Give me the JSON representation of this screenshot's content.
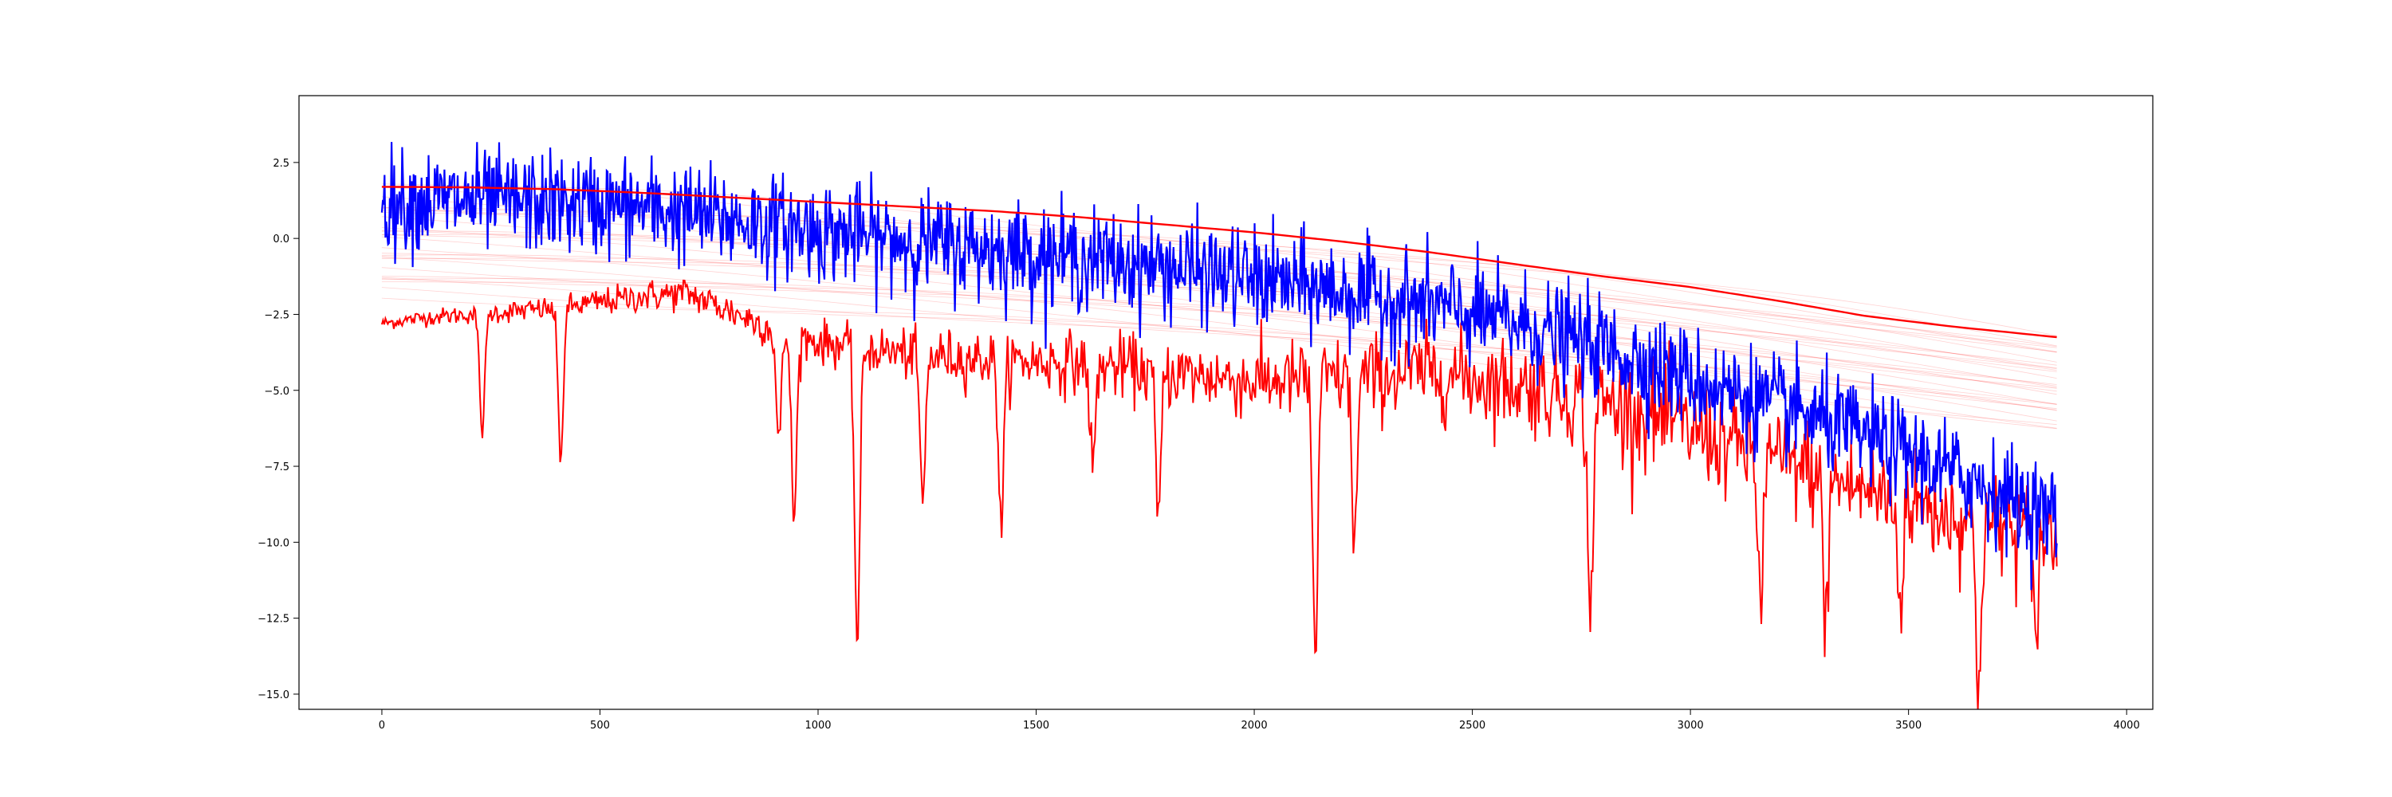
{
  "chart_data": {
    "type": "line",
    "title": "",
    "xlabel": "",
    "ylabel": "",
    "xlim": [
      -190,
      4060
    ],
    "ylim": [
      -15.5,
      4.7
    ],
    "xticks": [
      0,
      500,
      1000,
      1500,
      2000,
      2500,
      3000,
      3500,
      4000
    ],
    "yticks": [
      -15.0,
      -12.5,
      -10.0,
      -7.5,
      -5.0,
      -2.5,
      0.0,
      2.5
    ],
    "xtick_labels": [
      "0",
      "500",
      "1000",
      "1500",
      "2000",
      "2500",
      "3000",
      "3500",
      "4000"
    ],
    "ytick_labels": [
      "−15.0",
      "−12.5",
      "−10.0",
      "−7.5",
      "−5.0",
      "−2.5",
      "0.0",
      "2.5"
    ],
    "grid": false,
    "legend": "none",
    "x_range": [
      0,
      3840
    ],
    "series": [
      {
        "color": "#ff0000",
        "role": "upper smooth curve",
        "x": [
          0,
          200,
          400,
          600,
          800,
          1000,
          1200,
          1400,
          1600,
          1800,
          2000,
          2200,
          2400,
          2600,
          2800,
          3000,
          3200,
          3400,
          3600,
          3840
        ],
        "values": [
          1.7,
          1.68,
          1.62,
          1.5,
          1.35,
          1.2,
          1.05,
          0.9,
          0.7,
          0.45,
          0.2,
          -0.1,
          -0.45,
          -0.85,
          -1.25,
          -1.6,
          -2.05,
          -2.55,
          -2.9,
          -3.25
        ]
      },
      {
        "color": "#ff0000",
        "role": "lower noisy curve with dips",
        "x": [
          0,
          100,
          200,
          300,
          400,
          500,
          600,
          700,
          800,
          900,
          1000,
          1200,
          1400,
          1600,
          1800,
          2000,
          2200,
          2400,
          2600,
          2800,
          3000,
          3200,
          3400,
          3600,
          3840
        ],
        "values": [
          -2.8,
          -2.6,
          -2.5,
          -2.4,
          -2.3,
          -2.1,
          -1.9,
          -1.8,
          -2.4,
          -3.0,
          -3.4,
          -3.8,
          -4.0,
          -4.1,
          -4.4,
          -4.7,
          -4.6,
          -4.4,
          -4.8,
          -5.4,
          -6.3,
          -7.3,
          -8.3,
          -9.1,
          -9.9
        ],
        "dips": [
          [
            230,
            -6.3
          ],
          [
            410,
            -7.2
          ],
          [
            910,
            -6.7
          ],
          [
            945,
            -9.3
          ],
          [
            1090,
            -13.3
          ],
          [
            1240,
            -8.8
          ],
          [
            1420,
            -9.5
          ],
          [
            1630,
            -7.6
          ],
          [
            1780,
            -9.3
          ],
          [
            2140,
            -13.6
          ],
          [
            2230,
            -9.9
          ],
          [
            2770,
            -12.4
          ],
          [
            3160,
            -12.1
          ],
          [
            3310,
            -12.6
          ],
          [
            3480,
            -12.0
          ],
          [
            3660,
            -14.6
          ],
          [
            3790,
            -12.9
          ]
        ]
      },
      {
        "color": "#0000ff",
        "role": "noisy data series",
        "x": [
          0,
          200,
          400,
          600,
          800,
          1000,
          1200,
          1400,
          1600,
          1800,
          2000,
          2200,
          2400,
          2600,
          2800,
          3000,
          3200,
          3400,
          3600,
          3840
        ],
        "values": [
          1.2,
          1.25,
          1.15,
          1.0,
          0.6,
          0.25,
          -0.1,
          -0.35,
          -0.65,
          -0.95,
          -1.35,
          -1.75,
          -2.2,
          -2.8,
          -3.6,
          -4.6,
          -5.5,
          -6.5,
          -7.7,
          -9.2
        ],
        "noise_amplitude": 1.1
      }
    ],
    "faint_series": {
      "color": "#ff0000",
      "count": 30,
      "x": [
        0,
        3840
      ],
      "start_values": [
        1.7,
        -1.8
      ],
      "end_values": [
        -3.3,
        -6.2
      ]
    }
  }
}
